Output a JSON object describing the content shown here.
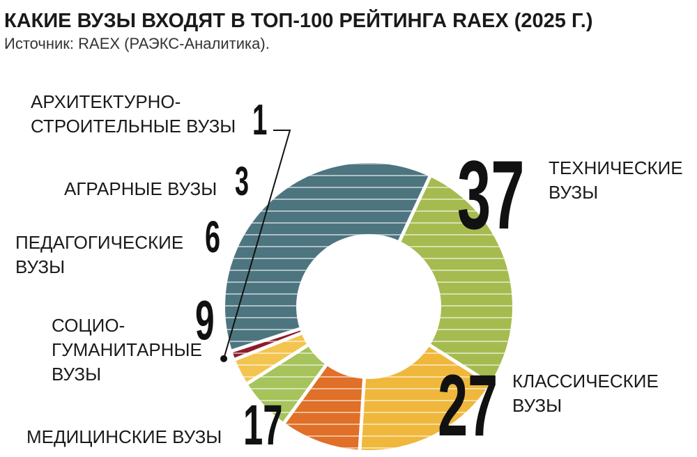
{
  "title": "КАКИЕ ВУЗЫ ВХОДЯТ В ТОП-100 РЕЙТИНГА RAEX (2025 Г.)",
  "source": "Источник: RAEX (РАЭКС-Аналитика).",
  "chart_data": {
    "type": "pie",
    "title": "КАКИЕ ВУЗЫ ВХОДЯТ В ТОП-100 РЕЙТИНГА RAEX (2025 Г.)",
    "slices": [
      {
        "label": "ТЕХНИЧЕСКИЕ ВУЗЫ",
        "value": 37,
        "color": "#4d7580"
      },
      {
        "label": "КЛАССИЧЕСКИЕ ВУЗЫ",
        "value": 27,
        "color": "#a6bb4f"
      },
      {
        "label": "МЕДИЦИНСКИЕ ВУЗЫ",
        "value": 17,
        "color": "#efb73b"
      },
      {
        "label": "СОЦИО-ГУМАНИТАРНЫЕ ВУЗЫ",
        "value": 9,
        "color": "#e06f27"
      },
      {
        "label": "ПЕДАГОГИЧЕСКИЕ ВУЗЫ",
        "value": 6,
        "color": "#a6c35c"
      },
      {
        "label": "АГРАРНЫЕ ВУЗЫ",
        "value": 3,
        "color": "#f3c44f"
      },
      {
        "label": "АРХИТЕКТУРНО-СТРОИТЕЛЬНЫЕ ВУЗЫ",
        "value": 1,
        "color": "#8e1d2b"
      }
    ],
    "labels": {
      "technical": "ТЕХНИЧЕСКИЕ\nВУЗЫ",
      "classic": "КЛАССИЧЕСКИЕ\nВУЗЫ",
      "medical": "МЕДИЦИНСКИЕ ВУЗЫ",
      "socio": "СОЦИО-\nГУМАНИТАРНЫЕ\nВУЗЫ",
      "pedagogical": "ПЕДАГОГИЧЕСКИЕ\nВУЗЫ",
      "agrarian": "АГРАРНЫЕ ВУЗЫ",
      "architecture": "АРХИТЕКТУРНО-\nСТРОИТЕЛЬНЫЕ ВУЗЫ"
    },
    "values": {
      "technical": "37",
      "classic": "27",
      "medical": "17",
      "socio": "9",
      "pedagogical": "6",
      "agrarian": "3",
      "architecture": "1"
    }
  }
}
